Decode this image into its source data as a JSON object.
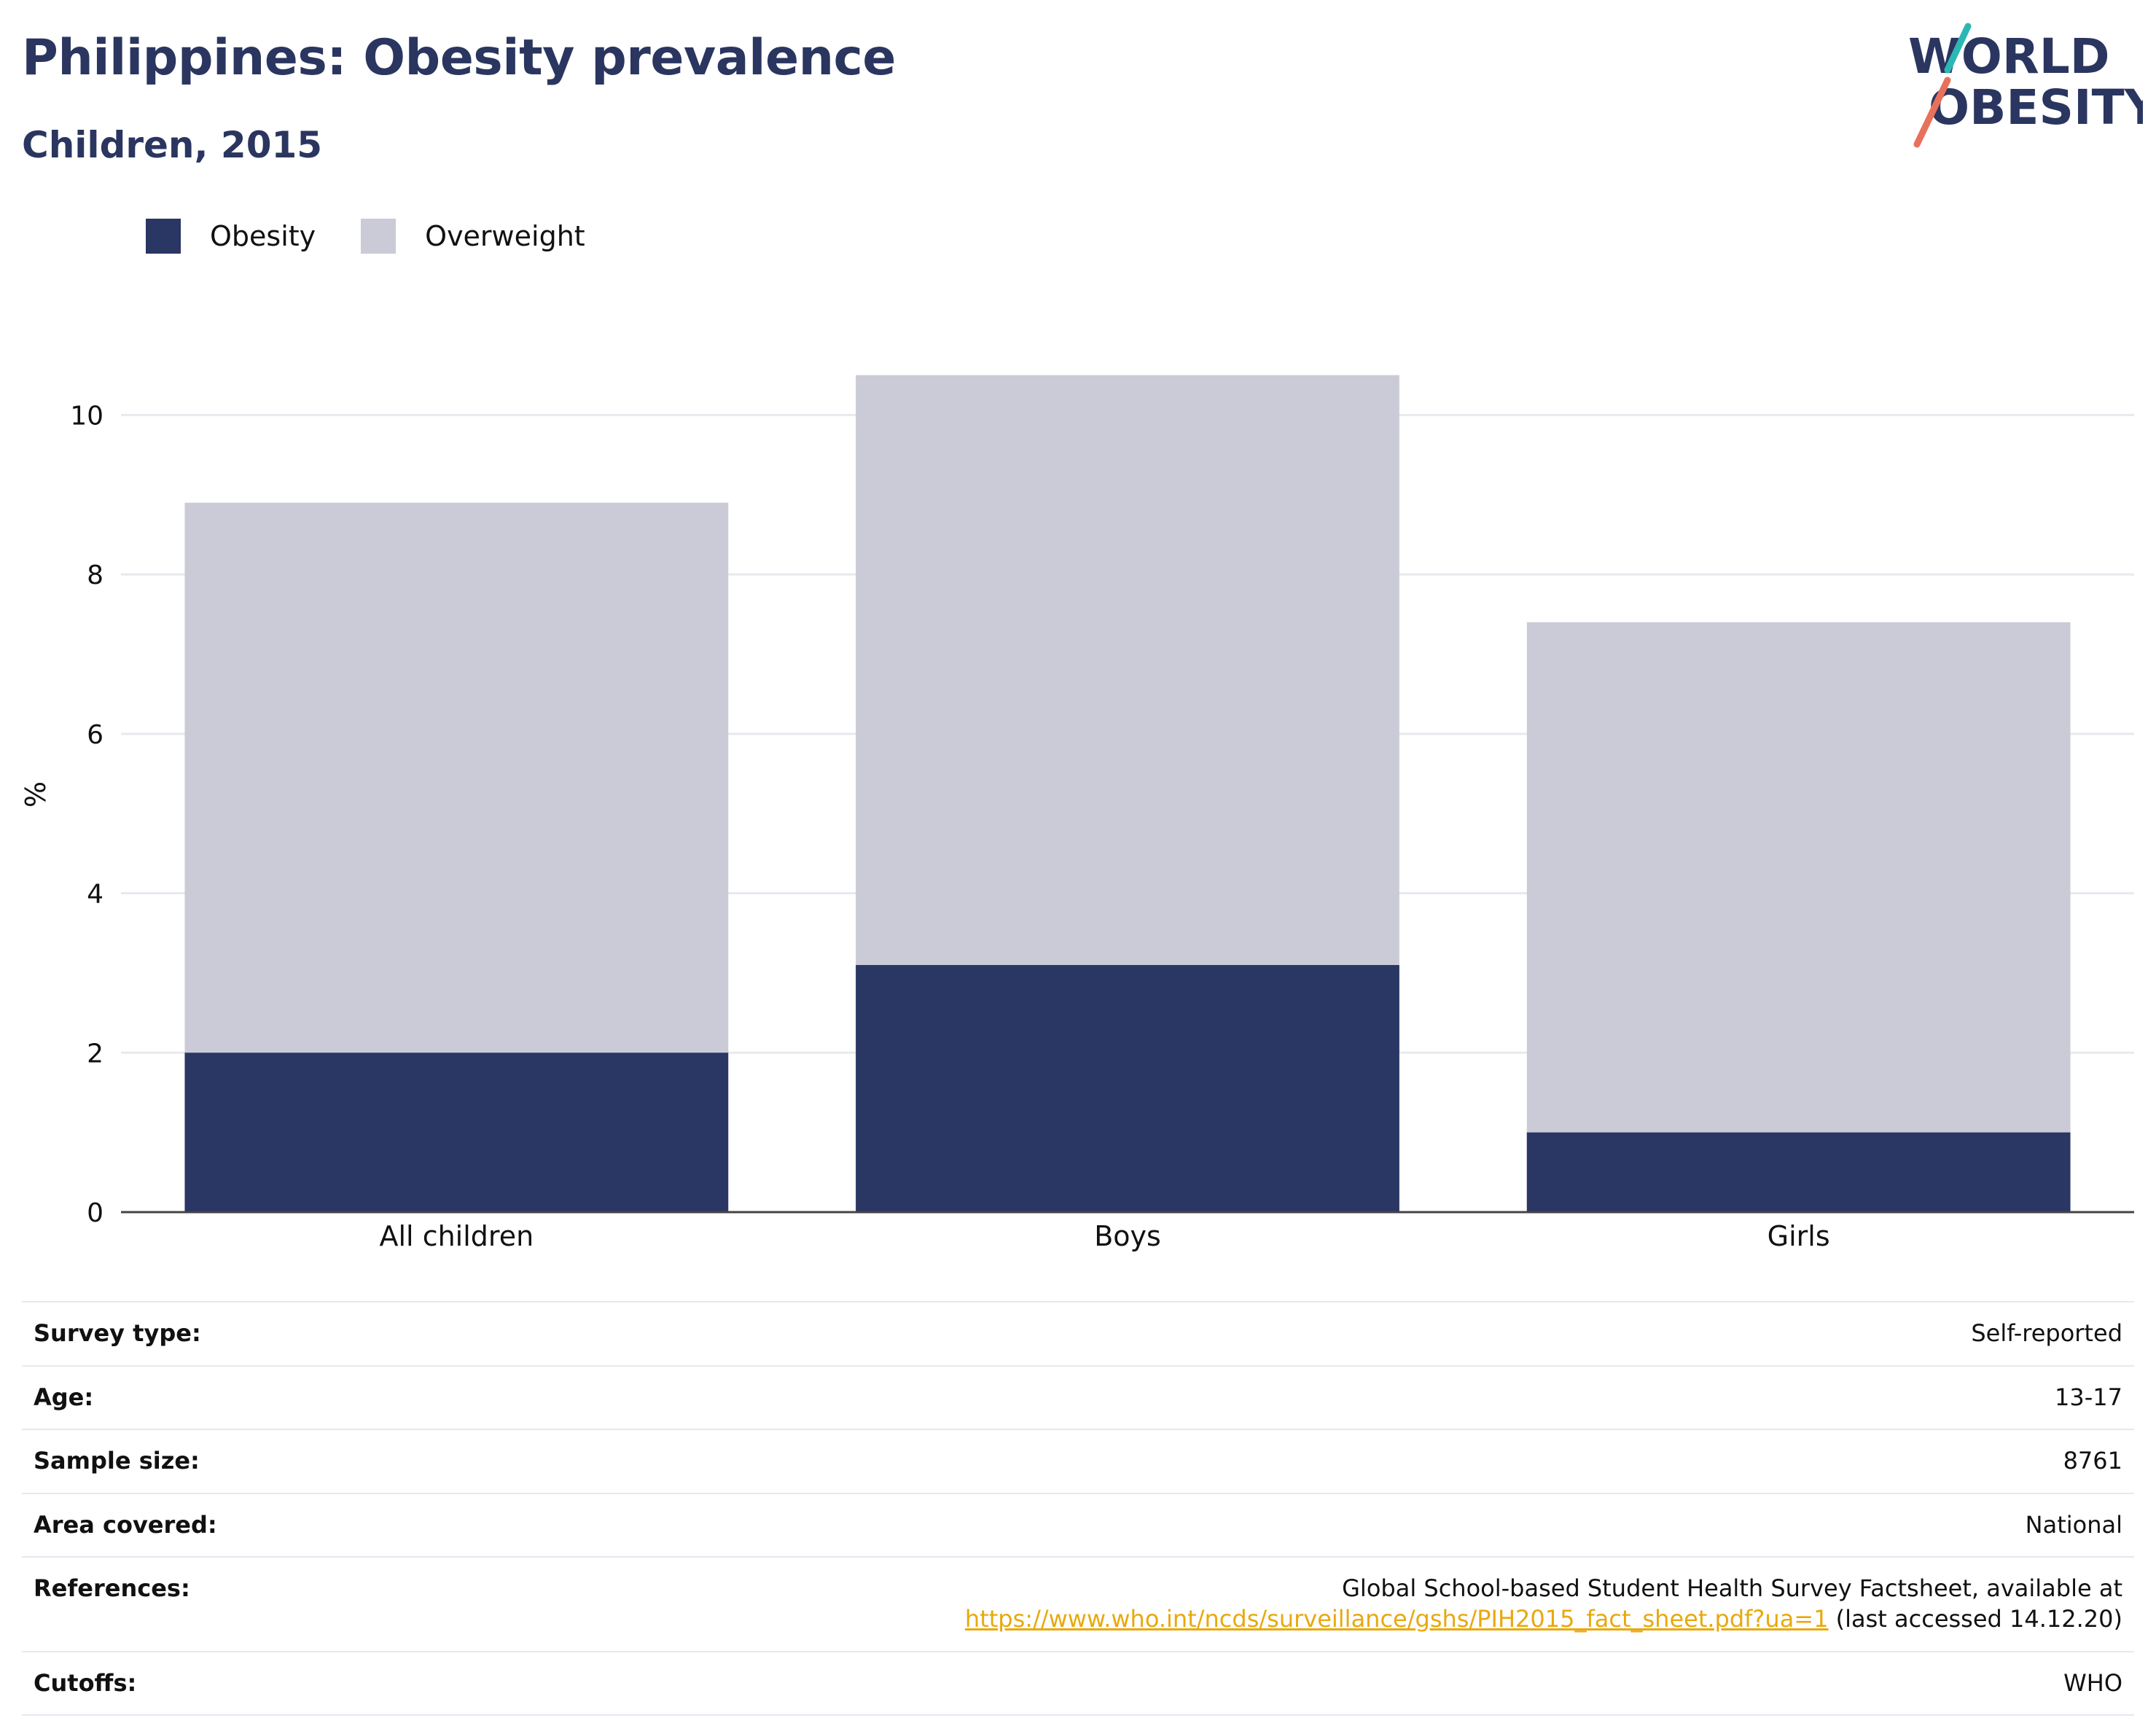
{
  "header": {
    "title": "Philippines: Obesity prevalence",
    "subtitle": "Children, 2015"
  },
  "logo": {
    "line1": "WORLD",
    "line2": "OBESITY",
    "slash_top_color": "#2bb8b4",
    "slash_bottom_color": "#e8715b",
    "text_color": "#2a365f"
  },
  "colors": {
    "obesity": "#2a3664",
    "overweight": "#cacbd6",
    "text_dark": "#2a365f",
    "link": "#e8a90e"
  },
  "legend": [
    {
      "label": "Obesity",
      "color": "#2a3664"
    },
    {
      "label": "Overweight",
      "color": "#cacbd6"
    }
  ],
  "chart_data": {
    "type": "bar",
    "stacked": "overlay",
    "title": "Philippines: Obesity prevalence",
    "subtitle": "Children, 2015",
    "xlabel": "",
    "ylabel": "%",
    "ylim": [
      0,
      11
    ],
    "yticks": [
      0,
      2,
      4,
      6,
      8,
      10
    ],
    "grid": true,
    "legend_position": "top-left",
    "categories": [
      "All children",
      "Boys",
      "Girls"
    ],
    "series": [
      {
        "name": "Overweight",
        "values": [
          8.9,
          10.5,
          7.4
        ],
        "color": "#cacbd6"
      },
      {
        "name": "Obesity",
        "values": [
          2.0,
          3.1,
          1.0
        ],
        "color": "#2a3664"
      }
    ]
  },
  "info": {
    "survey_type": {
      "label": "Survey type:",
      "value": "Self-reported"
    },
    "age": {
      "label": "Age:",
      "value": "13-17"
    },
    "sample_size": {
      "label": "Sample size:",
      "value": "8761"
    },
    "area_covered": {
      "label": "Area covered:",
      "value": "National"
    },
    "references": {
      "label": "References:",
      "text": "Global School-based Student Health Survey Factsheet, available at",
      "link": "https://www.who.int/ncds/surveillance/gshs/PIH2015_fact_sheet.pdf?ua=1",
      "suffix": " (last accessed 14.12.20)"
    },
    "cutoffs": {
      "label": "Cutoffs:",
      "value": "WHO"
    }
  }
}
